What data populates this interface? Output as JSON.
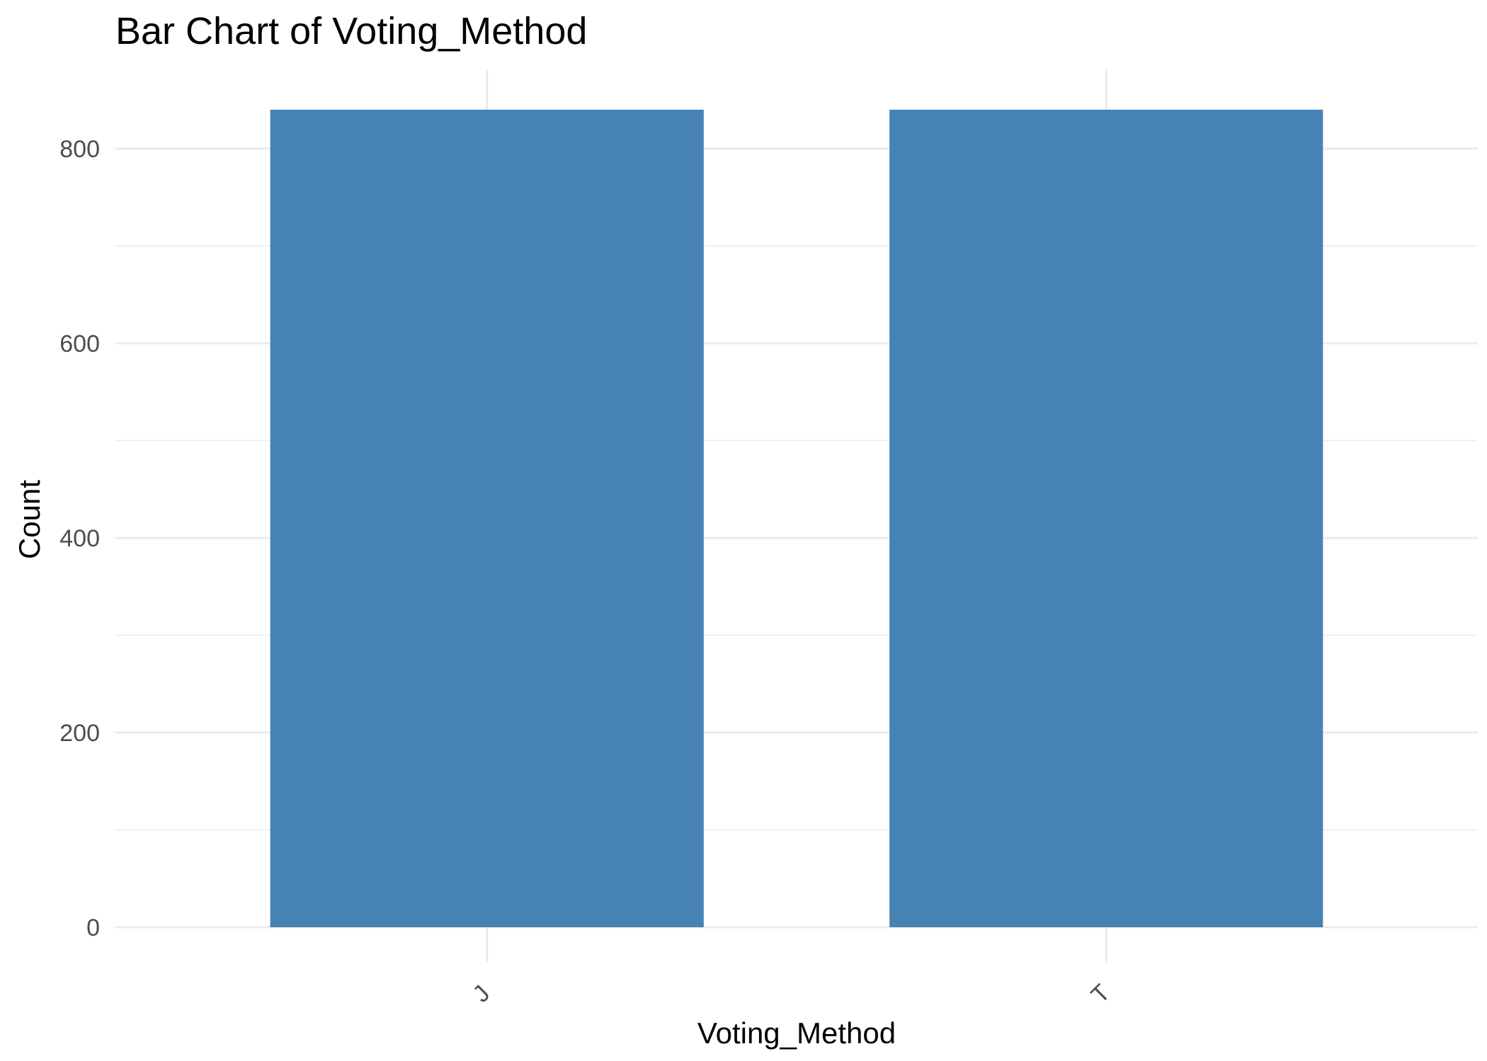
{
  "chart_data": {
    "type": "bar",
    "title": "Bar Chart of  Voting_Method",
    "xlabel": "Voting_Method",
    "ylabel": "Count",
    "categories": [
      "J",
      "T"
    ],
    "values": [
      840,
      840
    ],
    "ylim": [
      0,
      840
    ],
    "yticks": [
      0,
      200,
      400,
      600,
      800
    ],
    "yticks_minor": [
      100,
      300,
      500,
      700
    ],
    "bar_color": "#4682B4",
    "grid": true,
    "legend": "none"
  }
}
